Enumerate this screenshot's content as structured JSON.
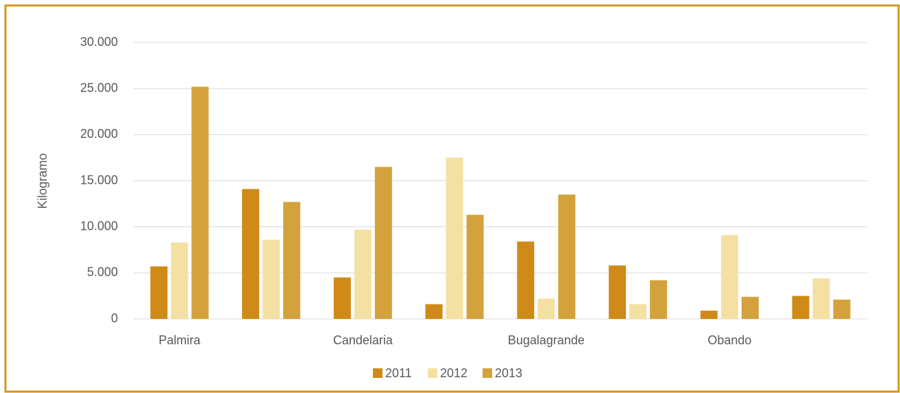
{
  "chart_data": {
    "type": "bar",
    "y_axis_label": "Kilogramo",
    "categories": [
      "Palmira",
      null,
      "Candelaria",
      null,
      "Bugalagrande",
      null,
      "Obando",
      null
    ],
    "series": [
      {
        "name": "2011",
        "color": "#d08a17",
        "values": [
          5700,
          14100,
          4500,
          1600,
          8400,
          5800,
          900,
          2500
        ]
      },
      {
        "name": "2012",
        "color": "#f5e0a3",
        "values": [
          8300,
          8600,
          9700,
          17500,
          2200,
          1600,
          9100,
          4400
        ]
      },
      {
        "name": "2013",
        "color": "#d4a23c",
        "values": [
          25200,
          12700,
          16500,
          11300,
          13500,
          4200,
          2400,
          2100
        ]
      }
    ],
    "ylim": [
      0,
      30000
    ],
    "yticks": [
      0,
      {
        "value": 5000,
        "label": "5.000"
      },
      {
        "value": 10000,
        "label": "10.000"
      },
      {
        "value": 15000,
        "label": "15.000"
      },
      {
        "value": 20000,
        "label": "20.000"
      },
      {
        "value": 25000,
        "label": "25.000"
      },
      {
        "value": 30000,
        "label": "30.000"
      }
    ],
    "grid": true,
    "legend": "bottom"
  }
}
